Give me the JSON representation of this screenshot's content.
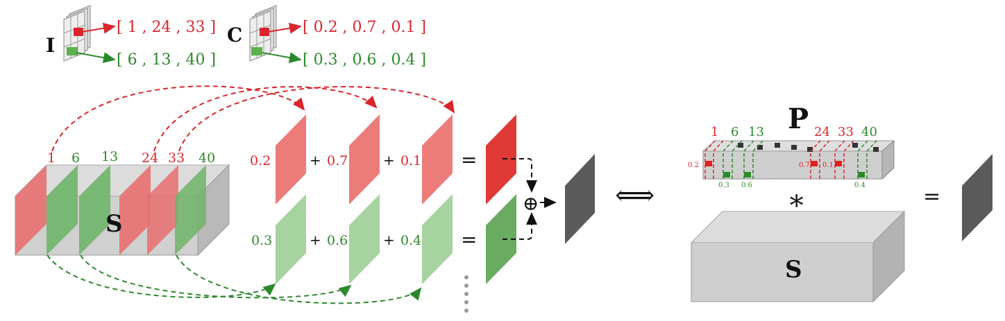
{
  "colors": {
    "red": "#d9252b",
    "green": "#2a8a2a",
    "red_fill": "#e87070",
    "green_fill": "#9ccf95",
    "gray_box": "#c9c9c9",
    "dark_slice": "#5a5a5a"
  },
  "legend": {
    "index_label": "I",
    "coef_label": "C",
    "index_red_vector": "[ 1 ,  24 ,  33 ]",
    "index_green_vector": "[ 6 ,  13 ,  40 ]",
    "coef_red_vector": "[ 0.2 ,  0.7 ,  0.1 ]",
    "coef_green_vector": "[ 0.3 ,  0.6 ,  0.4 ]"
  },
  "left_volume": {
    "label": "S",
    "slice_indices": [
      "1",
      "6",
      "13",
      "24",
      "33",
      "40"
    ]
  },
  "combination": {
    "red_coefs": [
      "0.2",
      "0.7",
      "0.1"
    ],
    "green_coefs": [
      "0.3",
      "0.6",
      "0.4"
    ],
    "plus": "+",
    "equals": "=",
    "oplus": "⊕"
  },
  "equivalence_symbol": "⟺",
  "right_side": {
    "filter_label": "P",
    "volume_label": "S",
    "conv_symbol": "∗",
    "equals": "=",
    "red_indices": [
      "1",
      "24",
      "33"
    ],
    "green_indices": [
      "6",
      "13",
      "40"
    ],
    "red_weights": [
      "0.2",
      "0.7",
      "0.1"
    ],
    "green_weights": [
      "0.3",
      "0.6",
      "0.4"
    ]
  }
}
